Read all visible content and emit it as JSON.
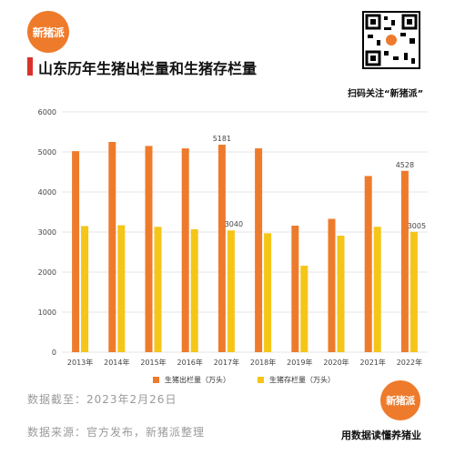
{
  "brand": {
    "logo_text": "新猪派",
    "qr_caption": "扫码关注“新猪派”",
    "slogan": "用数据读懂养猪业"
  },
  "footer": {
    "date_text": "数据截至：2023年2月26日",
    "source_text": "数据来源：官方发布，新猪派整理"
  },
  "colors": {
    "outgoing": "#ee7b2c",
    "stock": "#f5c518",
    "title_bar": "#d9322a",
    "grid": "#dcdcdc"
  },
  "chart_data": {
    "type": "bar",
    "title": "山东历年生猪出栏量和生猪存栏量",
    "categories": [
      "2013年",
      "2014年",
      "2015年",
      "2016年",
      "2017年",
      "2018年",
      "2019年",
      "2020年",
      "2021年",
      "2022年"
    ],
    "series": [
      {
        "name": "生猪出栏量（万头）",
        "values": [
          5020,
          5250,
          5150,
          5090,
          5181,
          5090,
          3160,
          3330,
          4400,
          4528
        ]
      },
      {
        "name": "生猪存栏量（万头）",
        "values": [
          3150,
          3170,
          3130,
          3070,
          3040,
          2970,
          2160,
          2910,
          3130,
          3005
        ]
      }
    ],
    "data_labels": [
      {
        "series": 0,
        "category": "2017年",
        "text": "5181"
      },
      {
        "series": 1,
        "category": "2017年",
        "text": "3040"
      },
      {
        "series": 0,
        "category": "2022年",
        "text": "4528"
      },
      {
        "series": 1,
        "category": "2022年",
        "text": "3005"
      }
    ],
    "ylim": [
      0,
      6000
    ],
    "yticks": [
      0,
      1000,
      2000,
      3000,
      4000,
      5000,
      6000
    ],
    "grid": true,
    "legend_position": "bottom"
  }
}
